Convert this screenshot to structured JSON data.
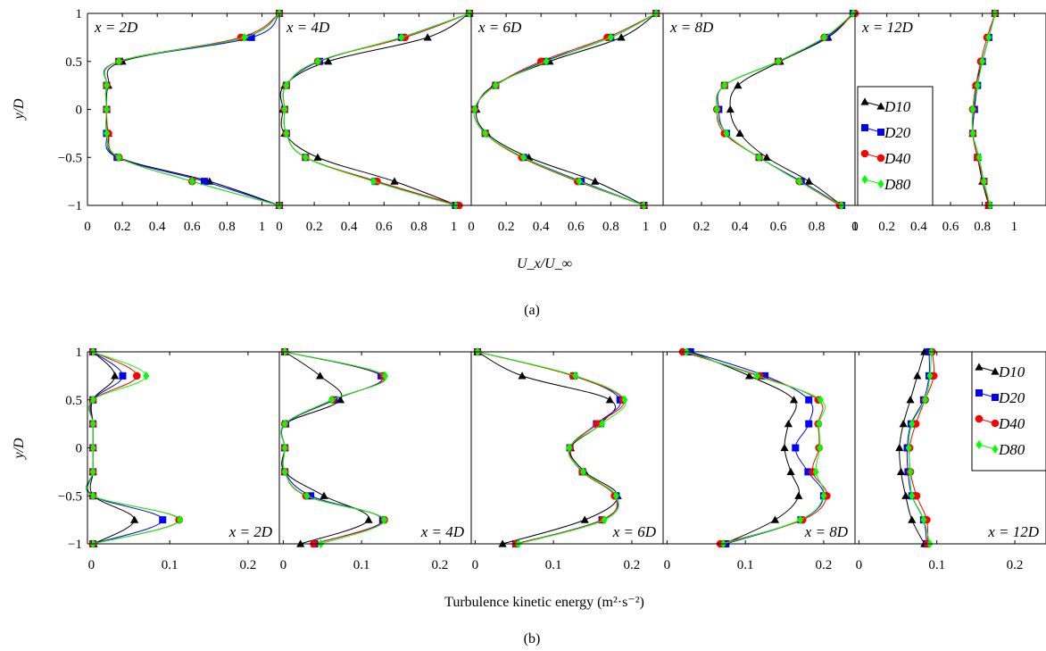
{
  "chart_data": [
    {
      "type": "line",
      "subfigure_caption": "(a)",
      "ylabel": "y/D",
      "xlabel": "U_x/U_∞",
      "ylim": [
        -1,
        1
      ],
      "y_ticks": [
        "-1",
        "-0.5",
        "0",
        "0.5",
        "1"
      ],
      "y": [
        -1,
        -0.75,
        -0.5,
        -0.25,
        0,
        0.25,
        0.5,
        0.75,
        1
      ],
      "legend": {
        "placement": "panel 5, right",
        "entries": [
          "D10",
          "D20",
          "D40",
          "D80"
        ]
      },
      "panels": [
        {
          "label": "x = 2D",
          "xlim": [
            0,
            1.1
          ],
          "x_ticks": [
            "0",
            "0.2",
            "0.4",
            "0.6",
            "0.8",
            "1"
          ],
          "x_tick_values": [
            0,
            0.2,
            0.4,
            0.6,
            0.8,
            1.0
          ],
          "series": [
            {
              "name": "D10",
              "values": [
                1.1,
                0.7,
                0.18,
                0.12,
                0.11,
                0.12,
                0.2,
                0.9,
                1.1
              ]
            },
            {
              "name": "D20",
              "values": [
                1.1,
                0.67,
                0.17,
                0.11,
                0.11,
                0.11,
                0.18,
                0.94,
                1.1
              ]
            },
            {
              "name": "D40",
              "values": [
                1.1,
                0.6,
                0.18,
                0.12,
                0.11,
                0.11,
                0.18,
                0.88,
                1.1
              ]
            },
            {
              "name": "D80",
              "values": [
                1.1,
                0.6,
                0.18,
                0.11,
                0.11,
                0.11,
                0.18,
                0.9,
                1.1
              ]
            }
          ]
        },
        {
          "label": "x = 4D",
          "xlim": [
            0,
            1.1
          ],
          "x_ticks": [
            "0",
            "0.2",
            "0.4",
            "0.6",
            "0.8",
            "1"
          ],
          "x_tick_values": [
            0,
            0.2,
            0.4,
            0.6,
            0.8,
            1.0
          ],
          "series": [
            {
              "name": "D10",
              "values": [
                1.02,
                0.66,
                0.22,
                0.03,
                0.02,
                0.03,
                0.28,
                0.85,
                1.09
              ]
            },
            {
              "name": "D20",
              "values": [
                1.01,
                0.55,
                0.15,
                0.04,
                0.03,
                0.04,
                0.23,
                0.7,
                1.09
              ]
            },
            {
              "name": "D40",
              "values": [
                1.03,
                0.56,
                0.15,
                0.04,
                0.03,
                0.04,
                0.22,
                0.72,
                1.09
              ]
            },
            {
              "name": "D80",
              "values": [
                1.01,
                0.54,
                0.15,
                0.04,
                0.03,
                0.04,
                0.22,
                0.7,
                1.09
              ]
            }
          ]
        },
        {
          "label": "x = 6D",
          "xlim": [
            0,
            1.1
          ],
          "x_ticks": [
            "0",
            "0.2",
            "0.4",
            "0.6",
            "0.8",
            "1"
          ],
          "x_tick_values": [
            0,
            0.2,
            0.4,
            0.6,
            0.8,
            1.0
          ],
          "series": [
            {
              "name": "D10",
              "values": [
                0.99,
                0.71,
                0.33,
                0.09,
                0.03,
                0.13,
                0.45,
                0.86,
                1.06
              ]
            },
            {
              "name": "D20",
              "values": [
                0.99,
                0.63,
                0.3,
                0.08,
                0.02,
                0.14,
                0.42,
                0.8,
                1.06
              ]
            },
            {
              "name": "D40",
              "values": [
                0.99,
                0.61,
                0.29,
                0.08,
                0.02,
                0.14,
                0.4,
                0.78,
                1.06
              ]
            },
            {
              "name": "D80",
              "values": [
                0.99,
                0.62,
                0.3,
                0.08,
                0.02,
                0.14,
                0.43,
                0.8,
                1.06
              ]
            }
          ]
        },
        {
          "label": "x = 8D",
          "xlim": [
            0,
            1.0
          ],
          "x_ticks": [
            "0",
            "0.2",
            "0.4",
            "0.6",
            "0.8",
            "1"
          ],
          "x_tick_values": [
            0,
            0.2,
            0.4,
            0.6,
            0.8,
            1.0
          ],
          "series": [
            {
              "name": "D10",
              "values": [
                0.93,
                0.76,
                0.54,
                0.4,
                0.35,
                0.39,
                0.61,
                0.86,
                0.99
              ]
            },
            {
              "name": "D20",
              "values": [
                0.93,
                0.72,
                0.5,
                0.33,
                0.29,
                0.32,
                0.6,
                0.85,
                0.99
              ]
            },
            {
              "name": "D40",
              "values": [
                0.92,
                0.71,
                0.5,
                0.32,
                0.28,
                0.32,
                0.6,
                0.84,
                1.0
              ]
            },
            {
              "name": "D80",
              "values": [
                0.93,
                0.71,
                0.5,
                0.33,
                0.28,
                0.32,
                0.6,
                0.84,
                0.99
              ]
            }
          ]
        },
        {
          "label": "x = 12D",
          "xlim": [
            0,
            1.2
          ],
          "x_ticks": [
            "0",
            "0.2",
            "0.4",
            "0.6",
            "0.8",
            "1"
          ],
          "x_tick_values": [
            0,
            0.2,
            0.4,
            0.6,
            0.8,
            1.0
          ],
          "series": [
            {
              "name": "D10",
              "values": [
                0.84,
                0.8,
                0.77,
                0.74,
                0.75,
                0.76,
                0.8,
                0.84,
                0.88
              ]
            },
            {
              "name": "D20",
              "values": [
                0.84,
                0.81,
                0.77,
                0.74,
                0.75,
                0.77,
                0.8,
                0.84,
                0.88
              ]
            },
            {
              "name": "D40",
              "values": [
                0.84,
                0.81,
                0.77,
                0.74,
                0.74,
                0.76,
                0.79,
                0.83,
                0.88
              ]
            },
            {
              "name": "D80",
              "values": [
                0.85,
                0.81,
                0.78,
                0.74,
                0.74,
                0.77,
                0.8,
                0.84,
                0.88
              ]
            }
          ]
        }
      ]
    },
    {
      "type": "line",
      "subfigure_caption": "(b)",
      "ylabel": "y/D",
      "xlabel": "Turbulence kinetic energy (m²·s⁻²)",
      "ylim": [
        -1,
        1
      ],
      "y_ticks": [
        "-1",
        "-0.5",
        "0",
        "0.5",
        "1"
      ],
      "y": [
        -1,
        -0.75,
        -0.5,
        -0.25,
        0,
        0.25,
        0.5,
        0.75,
        1
      ],
      "legend": {
        "placement": "panel 5, top-right",
        "entries": [
          "D10",
          "D20",
          "D40",
          "D80"
        ]
      },
      "panels": [
        {
          "label": "x = 2D",
          "xlim": [
            -0.005,
            0.24
          ],
          "x_ticks": [
            "0",
            "0.1",
            "0.2"
          ],
          "x_tick_values": [
            0,
            0.1,
            0.2
          ],
          "series": [
            {
              "name": "D10",
              "values": [
                0.003,
                0.055,
                0.003,
                0.002,
                0.002,
                0.002,
                0.002,
                0.03,
                0.002
              ]
            },
            {
              "name": "D20",
              "values": [
                0.002,
                0.091,
                0.002,
                0.002,
                0.002,
                0.002,
                0.002,
                0.04,
                0.002
              ]
            },
            {
              "name": "D40",
              "values": [
                0.002,
                0.112,
                0.002,
                0.002,
                0.002,
                0.002,
                0.002,
                0.058,
                0.002
              ]
            },
            {
              "name": "D80",
              "values": [
                0.002,
                0.113,
                0.002,
                0.002,
                0.002,
                0.002,
                0.002,
                0.07,
                0.002
              ]
            }
          ]
        },
        {
          "label": "x = 4D",
          "xlim": [
            -0.005,
            0.24
          ],
          "x_ticks": [
            "0",
            "0.1",
            "0.2"
          ],
          "x_tick_values": [
            0,
            0.1,
            0.2
          ],
          "series": [
            {
              "name": "D10",
              "values": [
                0.022,
                0.109,
                0.052,
                0.002,
                0.002,
                0.003,
                0.073,
                0.047,
                0.002
              ]
            },
            {
              "name": "D20",
              "values": [
                0.04,
                0.127,
                0.035,
                0.002,
                0.002,
                0.003,
                0.065,
                0.125,
                0.002
              ]
            },
            {
              "name": "D40",
              "values": [
                0.039,
                0.129,
                0.029,
                0.002,
                0.002,
                0.002,
                0.063,
                0.128,
                0.002
              ]
            },
            {
              "name": "D80",
              "values": [
                0.048,
                0.129,
                0.03,
                0.002,
                0.002,
                0.002,
                0.062,
                0.13,
                0.002
              ]
            }
          ]
        },
        {
          "label": "x = 6D",
          "xlim": [
            -0.005,
            0.24
          ],
          "x_ticks": [
            "0",
            "0.1",
            "0.2"
          ],
          "x_tick_values": [
            0,
            0.1,
            0.2
          ],
          "series": [
            {
              "name": "D10",
              "values": [
                0.035,
                0.14,
                0.182,
                0.14,
                0.122,
                0.16,
                0.172,
                0.06,
                0.003
              ]
            },
            {
              "name": "D20",
              "values": [
                0.052,
                0.162,
                0.18,
                0.137,
                0.121,
                0.155,
                0.185,
                0.126,
                0.003
              ]
            },
            {
              "name": "D40",
              "values": [
                0.052,
                0.163,
                0.178,
                0.137,
                0.121,
                0.156,
                0.189,
                0.125,
                0.003
              ]
            },
            {
              "name": "D80",
              "values": [
                0.055,
                0.165,
                0.18,
                0.138,
                0.12,
                0.162,
                0.191,
                0.128,
                0.003
              ]
            }
          ]
        },
        {
          "label": "x = 8D",
          "xlim": [
            -0.005,
            0.24
          ],
          "x_ticks": [
            "0",
            "0.1",
            "0.2"
          ],
          "x_tick_values": [
            0,
            0.1,
            0.2
          ],
          "series": [
            {
              "name": "D10",
              "values": [
                0.073,
                0.138,
                0.168,
                0.158,
                0.15,
                0.155,
                0.162,
                0.105,
                0.03
              ]
            },
            {
              "name": "D20",
              "values": [
                0.075,
                0.171,
                0.2,
                0.18,
                0.164,
                0.181,
                0.181,
                0.125,
                0.03
              ]
            },
            {
              "name": "D40",
              "values": [
                0.068,
                0.173,
                0.204,
                0.186,
                0.194,
                0.193,
                0.193,
                0.118,
                0.02
              ]
            },
            {
              "name": "D80",
              "values": [
                0.072,
                0.17,
                0.2,
                0.19,
                0.195,
                0.194,
                0.196,
                0.115,
                0.025
              ]
            }
          ]
        },
        {
          "label": "x = 12D",
          "xlim": [
            -0.005,
            0.24
          ],
          "x_ticks": [
            "0",
            "0.1",
            "0.2"
          ],
          "x_tick_values": [
            0,
            0.1,
            0.2
          ],
          "series": [
            {
              "name": "D10",
              "values": [
                0.084,
                0.068,
                0.06,
                0.054,
                0.052,
                0.057,
                0.066,
                0.075,
                0.084
              ]
            },
            {
              "name": "D20",
              "values": [
                0.087,
                0.083,
                0.068,
                0.063,
                0.062,
                0.067,
                0.083,
                0.09,
                0.09
              ]
            },
            {
              "name": "D40",
              "values": [
                0.088,
                0.087,
                0.074,
                0.066,
                0.065,
                0.073,
                0.085,
                0.096,
                0.094
              ]
            },
            {
              "name": "D80",
              "values": [
                0.091,
                0.083,
                0.068,
                0.066,
                0.064,
                0.068,
                0.085,
                0.091,
                0.093
              ]
            }
          ]
        }
      ]
    }
  ],
  "series_colors": {
    "D10": "#000000",
    "D20": "#0000ff",
    "D40": "#ff0000",
    "D80": "#00ff00"
  },
  "series_markers": {
    "D10": "triangle",
    "D20": "square",
    "D40": "circle",
    "D80": "diamond"
  }
}
